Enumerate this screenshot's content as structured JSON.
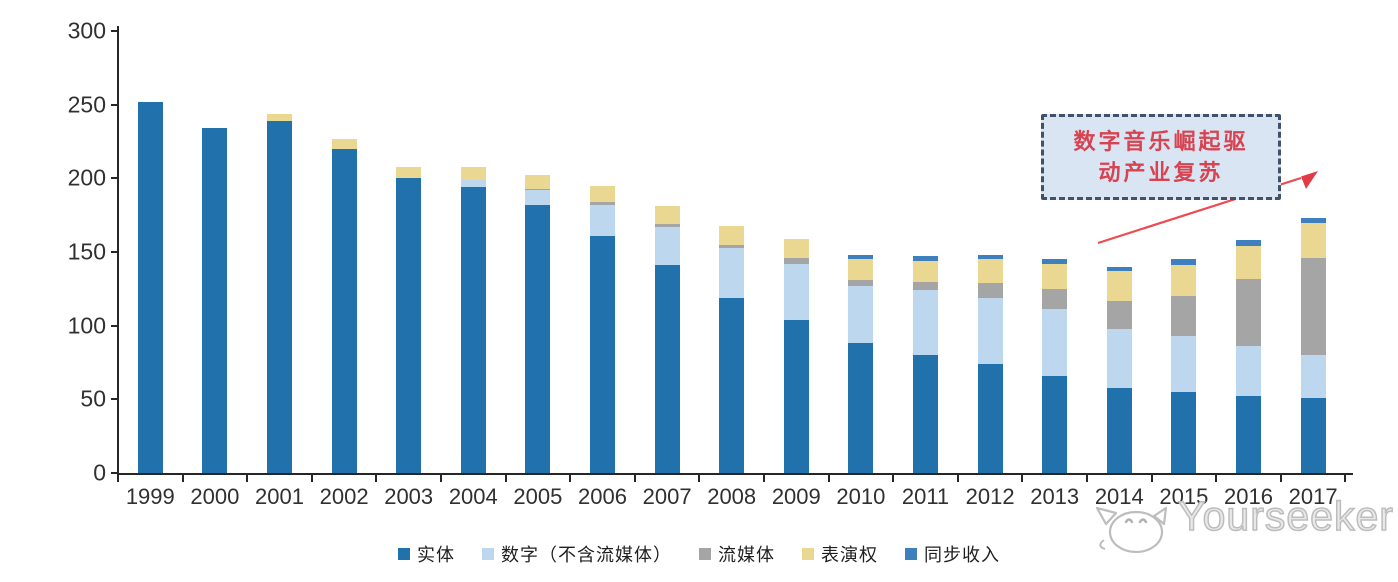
{
  "chart_data": {
    "type": "bar",
    "subtype": "stacked",
    "title": "",
    "xlabel": "",
    "ylabel": "",
    "ylim": [
      0,
      300
    ],
    "yticks": [
      0,
      50,
      100,
      150,
      200,
      250,
      300
    ],
    "grid": false,
    "legend_position": "bottom",
    "categories": [
      "1999",
      "2000",
      "2001",
      "2002",
      "2003",
      "2004",
      "2005",
      "2006",
      "2007",
      "2008",
      "2009",
      "2010",
      "2011",
      "2012",
      "2013",
      "2014",
      "2015",
      "2016",
      "2017"
    ],
    "series": [
      {
        "id": "physical",
        "name": "实体",
        "color": "#2171AC",
        "values": [
          252,
          234,
          239,
          220,
          200,
          194,
          182,
          161,
          141,
          119,
          104,
          88,
          80,
          74,
          66,
          58,
          55,
          52,
          51
        ]
      },
      {
        "id": "digital-ex-streaming",
        "name": "数字（不含流媒体）",
        "color": "#BDD7EE",
        "values": [
          0,
          0,
          0,
          0,
          0,
          5,
          10,
          21,
          26,
          34,
          38,
          39,
          44,
          45,
          45,
          40,
          38,
          34,
          29
        ]
      },
      {
        "id": "streaming",
        "name": "流媒体",
        "color": "#A5A5A5",
        "values": [
          0,
          0,
          0,
          0,
          0,
          0,
          1,
          2,
          2,
          2,
          4,
          4,
          6,
          10,
          14,
          19,
          27,
          46,
          66
        ]
      },
      {
        "id": "performance-rights",
        "name": "表演权",
        "color": "#E9D792",
        "values": [
          0,
          0,
          5,
          7,
          8,
          9,
          9,
          11,
          12,
          13,
          13,
          14,
          14,
          16,
          17,
          20,
          21,
          22,
          24
        ]
      },
      {
        "id": "sync-revenue",
        "name": "同步收入",
        "color": "#3E80BE",
        "values": [
          0,
          0,
          0,
          0,
          0,
          0,
          0,
          0,
          0,
          0,
          0,
          3,
          3,
          3,
          3,
          3,
          4,
          4,
          3
        ]
      }
    ]
  },
  "annotation": {
    "line1": "数字音乐崛起驱",
    "line2": "动产业复苏",
    "box_fill": "#D9E5F3",
    "border_color": "#41506B",
    "text_color": "#D74350",
    "arrow_color": "#EC4B52"
  },
  "watermark": {
    "text": "Yourseeker",
    "logo": "cat-logo-icon"
  }
}
